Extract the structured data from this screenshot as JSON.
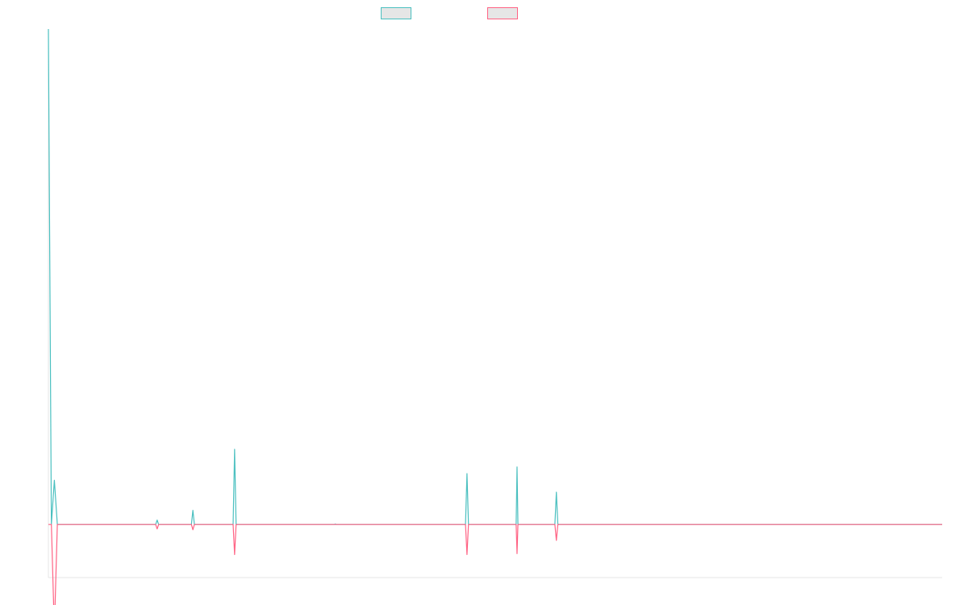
{
  "chart_data": {
    "type": "line",
    "title": "",
    "xlabel": "",
    "ylabel": "",
    "grid": false,
    "legend_position": "top",
    "x": [
      0,
      1,
      2,
      3,
      4,
      5,
      6,
      7,
      8,
      9,
      10,
      11,
      12,
      13,
      14,
      15,
      16,
      17,
      18,
      19,
      20,
      21,
      22,
      23,
      24,
      25,
      26,
      27,
      28,
      29,
      30,
      31,
      32,
      33,
      34,
      35,
      36,
      37,
      38,
      39,
      40,
      41,
      42,
      43,
      44,
      45,
      46,
      47,
      48,
      49,
      50,
      51,
      52,
      53,
      54,
      55,
      56,
      57,
      58,
      59,
      60,
      61,
      62,
      63,
      64,
      65,
      66,
      67,
      68,
      69,
      70,
      71,
      72,
      73,
      74,
      75,
      76,
      77,
      78,
      79,
      80,
      81,
      82,
      83,
      84,
      85,
      86,
      87,
      88,
      89,
      90,
      91,
      92,
      93,
      94,
      95,
      96,
      97,
      98,
      99,
      100,
      101,
      102,
      103,
      104,
      105,
      106,
      107,
      108,
      109,
      110,
      111,
      112,
      113,
      114,
      115,
      116,
      117,
      118,
      119,
      120,
      121,
      122,
      123,
      124,
      125,
      126,
      127,
      128,
      129,
      130,
      131,
      132,
      133,
      134,
      135,
      136,
      137,
      138,
      139,
      140,
      141,
      142,
      143,
      144,
      145,
      146,
      147,
      148,
      149,
      150,
      151,
      152,
      153,
      154,
      155,
      156,
      157,
      158,
      159,
      160,
      161,
      162,
      163,
      164,
      165,
      166,
      167,
      168,
      169,
      170,
      171,
      172,
      173,
      174,
      175,
      176,
      177,
      178,
      179,
      180,
      181,
      182,
      183,
      184,
      185,
      186,
      187,
      188,
      189,
      190,
      191,
      192,
      193,
      194,
      195,
      196,
      197,
      198,
      199,
      200,
      201,
      202,
      203,
      204,
      205,
      206,
      207,
      208,
      209,
      210,
      211,
      212,
      213,
      214,
      215,
      216,
      217,
      218,
      219,
      220,
      221,
      222,
      223,
      224,
      225,
      226,
      227,
      228,
      229,
      230,
      231,
      232,
      233,
      234,
      235,
      236,
      237,
      238,
      239,
      240,
      241,
      242,
      243,
      244,
      245,
      246,
      247,
      248,
      249,
      250,
      251,
      252,
      253,
      254,
      255,
      256,
      257,
      258,
      259,
      260,
      261,
      262,
      263,
      264,
      265,
      266,
      267,
      268,
      269,
      270,
      271,
      272,
      273,
      274,
      275,
      276,
      277,
      278,
      279,
      280,
      281,
      282,
      283,
      284,
      285,
      286,
      287,
      288,
      289,
      290,
      291,
      292,
      293,
      294,
      295,
      296,
      297,
      298,
      299,
      300
    ],
    "ylim": [
      -12,
      112
    ],
    "series": [
      {
        "color": "#4bc0c0",
        "points": [
          [
            0,
            112
          ],
          [
            1,
            0
          ],
          [
            2,
            10
          ],
          [
            3,
            0
          ],
          [
            36,
            0
          ],
          [
            36.5,
            1
          ],
          [
            37,
            0
          ],
          [
            48,
            0
          ],
          [
            48.5,
            3.2
          ],
          [
            49,
            0
          ],
          [
            62,
            0
          ],
          [
            62.5,
            17
          ],
          [
            63,
            0
          ],
          [
            96,
            0
          ],
          [
            96.3,
            0.1
          ],
          [
            96.6,
            0
          ],
          [
            140,
            0
          ],
          [
            140.5,
            11.5
          ],
          [
            141,
            0
          ],
          [
            157,
            0
          ],
          [
            157.3,
            13
          ],
          [
            157.6,
            0
          ],
          [
            170,
            0
          ],
          [
            170.5,
            7.3
          ],
          [
            171,
            0
          ],
          [
            300,
            0
          ]
        ]
      },
      {
        "color": "#ff6384",
        "points": [
          [
            0,
            0
          ],
          [
            1,
            0
          ],
          [
            2,
            -24
          ],
          [
            3,
            0
          ],
          [
            36,
            0
          ],
          [
            36.5,
            -1
          ],
          [
            37,
            0
          ],
          [
            48,
            0
          ],
          [
            48.5,
            -1.2
          ],
          [
            49,
            0
          ],
          [
            62,
            0
          ],
          [
            62.5,
            -6.8
          ],
          [
            63,
            0
          ],
          [
            140,
            0
          ],
          [
            140.5,
            -6.8
          ],
          [
            141,
            0
          ],
          [
            157,
            0
          ],
          [
            157.3,
            -6.6
          ],
          [
            157.6,
            0
          ],
          [
            170,
            0
          ],
          [
            170.5,
            -3.6
          ],
          [
            171,
            0
          ],
          [
            300,
            0
          ]
        ]
      }
    ]
  }
}
